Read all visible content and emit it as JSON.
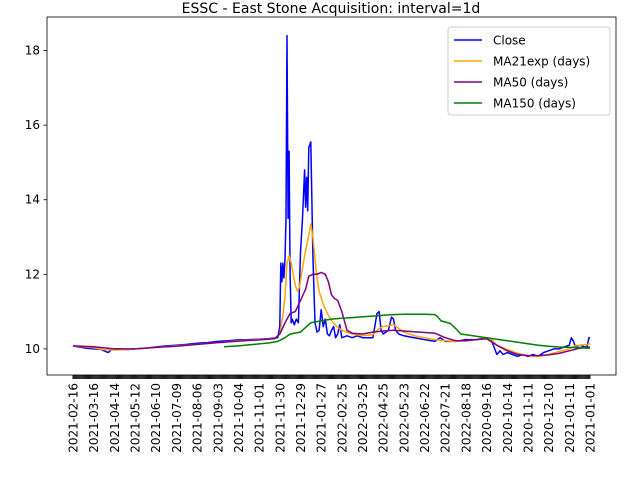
{
  "chart_data": {
    "type": "line",
    "title": "ESSC - East Stone Acquisition: interval=1d",
    "xlabel": "",
    "ylabel": "",
    "ylim": [
      9.3,
      18.9
    ],
    "yticks": [
      10,
      12,
      14,
      16,
      18
    ],
    "x_tick_labels": [
      "2021-02-16",
      "2021-03-16",
      "2021-04-14",
      "2021-05-12",
      "2021-06-10",
      "2021-07-09",
      "2021-08-06",
      "2021-09-03",
      "2021-10-04",
      "2021-11-01",
      "2021-11-30",
      "2021-12-29",
      "2021-01-27",
      "2022-02-25",
      "2022-03-25",
      "2022-04-25",
      "2022-05-23",
      "2022-06-22",
      "2022-07-21",
      "2022-08-18",
      "2020-09-16",
      "2020-10-14",
      "2020-11-11",
      "2020-12-10",
      "2021-01-11",
      "2021-01-01"
    ],
    "grid": false,
    "legend_position": "upper right",
    "x_index_range": [
      0,
      500
    ],
    "series": [
      {
        "name": "Close",
        "color": "#0000ff",
        "points": [
          [
            0,
            10.08
          ],
          [
            6,
            10.05
          ],
          [
            13,
            10.02
          ],
          [
            20,
            10.0
          ],
          [
            27,
            9.99
          ],
          [
            30,
            9.95
          ],
          [
            34,
            9.9
          ],
          [
            38,
            10.0
          ],
          [
            45,
            10.0
          ],
          [
            52,
            9.98
          ],
          [
            60,
            10.0
          ],
          [
            70,
            10.02
          ],
          [
            80,
            10.05
          ],
          [
            90,
            10.08
          ],
          [
            100,
            10.1
          ],
          [
            110,
            10.12
          ],
          [
            120,
            10.15
          ],
          [
            130,
            10.17
          ],
          [
            140,
            10.2
          ],
          [
            150,
            10.22
          ],
          [
            160,
            10.24
          ],
          [
            170,
            10.25
          ],
          [
            180,
            10.26
          ],
          [
            190,
            10.28
          ],
          [
            198,
            10.3
          ],
          [
            200,
            10.6
          ],
          [
            201,
            12.3
          ],
          [
            202,
            11.8
          ],
          [
            203,
            12.3
          ],
          [
            204,
            11.9
          ],
          [
            205,
            12.4
          ],
          [
            206,
            13.5
          ],
          [
            207,
            18.4
          ],
          [
            208,
            13.5
          ],
          [
            209,
            15.3
          ],
          [
            210,
            12.0
          ],
          [
            211,
            10.7
          ],
          [
            212,
            10.8
          ],
          [
            214,
            10.65
          ],
          [
            216,
            10.8
          ],
          [
            218,
            10.7
          ],
          [
            220,
            12.6
          ],
          [
            222,
            13.5
          ],
          [
            224,
            14.8
          ],
          [
            225,
            13.8
          ],
          [
            226,
            14.6
          ],
          [
            227,
            13.7
          ],
          [
            228,
            15.4
          ],
          [
            230,
            15.55
          ],
          [
            232,
            12.5
          ],
          [
            234,
            10.7
          ],
          [
            236,
            10.45
          ],
          [
            238,
            10.5
          ],
          [
            240,
            11.05
          ],
          [
            242,
            10.6
          ],
          [
            244,
            10.8
          ],
          [
            246,
            10.4
          ],
          [
            248,
            10.35
          ],
          [
            250,
            10.5
          ],
          [
            252,
            10.6
          ],
          [
            254,
            10.3
          ],
          [
            256,
            10.4
          ],
          [
            258,
            10.65
          ],
          [
            260,
            10.3
          ],
          [
            265,
            10.35
          ],
          [
            270,
            10.3
          ],
          [
            275,
            10.35
          ],
          [
            280,
            10.3
          ],
          [
            290,
            10.3
          ],
          [
            294,
            10.95
          ],
          [
            296,
            11.0
          ],
          [
            298,
            10.5
          ],
          [
            300,
            10.4
          ],
          [
            305,
            10.5
          ],
          [
            308,
            10.85
          ],
          [
            310,
            10.8
          ],
          [
            312,
            10.5
          ],
          [
            315,
            10.4
          ],
          [
            320,
            10.35
          ],
          [
            330,
            10.3
          ],
          [
            340,
            10.25
          ],
          [
            350,
            10.2
          ],
          [
            355,
            10.3
          ],
          [
            360,
            10.2
          ],
          [
            370,
            10.2
          ],
          [
            380,
            10.25
          ],
          [
            390,
            10.25
          ],
          [
            400,
            10.3
          ],
          [
            405,
            10.2
          ],
          [
            410,
            9.85
          ],
          [
            413,
            9.95
          ],
          [
            416,
            9.85
          ],
          [
            420,
            9.9
          ],
          [
            425,
            9.85
          ],
          [
            430,
            9.8
          ],
          [
            435,
            9.85
          ],
          [
            440,
            9.8
          ],
          [
            445,
            9.85
          ],
          [
            450,
            9.8
          ],
          [
            455,
            9.9
          ],
          [
            460,
            9.95
          ],
          [
            465,
            10.0
          ],
          [
            470,
            10.0
          ],
          [
            475,
            10.05
          ],
          [
            480,
            10.1
          ],
          [
            482,
            10.3
          ],
          [
            484,
            10.2
          ],
          [
            486,
            10.05
          ],
          [
            490,
            10.1
          ],
          [
            495,
            10.05
          ],
          [
            497,
            10.05
          ],
          [
            499,
            10.3
          ],
          [
            500,
            10.3
          ]
        ]
      },
      {
        "name": "MA21exp (days)",
        "color": "#ffa500",
        "points": [
          [
            0,
            10.08
          ],
          [
            10,
            10.06
          ],
          [
            20,
            10.03
          ],
          [
            30,
            9.98
          ],
          [
            40,
            9.97
          ],
          [
            50,
            9.98
          ],
          [
            60,
            10.0
          ],
          [
            80,
            10.04
          ],
          [
            100,
            10.08
          ],
          [
            120,
            10.12
          ],
          [
            140,
            10.17
          ],
          [
            160,
            10.22
          ],
          [
            180,
            10.25
          ],
          [
            195,
            10.28
          ],
          [
            200,
            10.4
          ],
          [
            203,
            10.9
          ],
          [
            205,
            11.4
          ],
          [
            207,
            12.3
          ],
          [
            209,
            12.5
          ],
          [
            211,
            12.3
          ],
          [
            213,
            12.0
          ],
          [
            215,
            11.7
          ],
          [
            217,
            11.55
          ],
          [
            219,
            11.65
          ],
          [
            221,
            12.0
          ],
          [
            224,
            12.5
          ],
          [
            227,
            12.9
          ],
          [
            230,
            13.35
          ],
          [
            232,
            13.0
          ],
          [
            234,
            12.4
          ],
          [
            236,
            11.9
          ],
          [
            238,
            11.55
          ],
          [
            242,
            11.2
          ],
          [
            246,
            10.95
          ],
          [
            250,
            10.75
          ],
          [
            255,
            10.6
          ],
          [
            260,
            10.5
          ],
          [
            270,
            10.4
          ],
          [
            280,
            10.35
          ],
          [
            290,
            10.38
          ],
          [
            296,
            10.55
          ],
          [
            300,
            10.6
          ],
          [
            305,
            10.62
          ],
          [
            310,
            10.65
          ],
          [
            315,
            10.55
          ],
          [
            320,
            10.45
          ],
          [
            330,
            10.35
          ],
          [
            340,
            10.3
          ],
          [
            350,
            10.25
          ],
          [
            360,
            10.22
          ],
          [
            370,
            10.2
          ],
          [
            380,
            10.22
          ],
          [
            390,
            10.25
          ],
          [
            400,
            10.28
          ],
          [
            405,
            10.25
          ],
          [
            410,
            10.1
          ],
          [
            420,
            9.98
          ],
          [
            430,
            9.88
          ],
          [
            440,
            9.82
          ],
          [
            450,
            9.8
          ],
          [
            460,
            9.85
          ],
          [
            470,
            9.93
          ],
          [
            480,
            10.0
          ],
          [
            485,
            10.08
          ],
          [
            490,
            10.1
          ],
          [
            500,
            10.13
          ]
        ]
      },
      {
        "name": "MA50 (days)",
        "color": "#800080",
        "points": [
          [
            0,
            10.08
          ],
          [
            20,
            10.06
          ],
          [
            40,
            10.0
          ],
          [
            60,
            10.0
          ],
          [
            80,
            10.04
          ],
          [
            100,
            10.07
          ],
          [
            120,
            10.12
          ],
          [
            140,
            10.17
          ],
          [
            160,
            10.21
          ],
          [
            180,
            10.24
          ],
          [
            195,
            10.27
          ],
          [
            200,
            10.4
          ],
          [
            205,
            10.7
          ],
          [
            210,
            10.95
          ],
          [
            215,
            11.0
          ],
          [
            220,
            11.3
          ],
          [
            225,
            11.6
          ],
          [
            228,
            11.95
          ],
          [
            232,
            12.0
          ],
          [
            236,
            12.0
          ],
          [
            240,
            12.05
          ],
          [
            244,
            12.0
          ],
          [
            247,
            11.8
          ],
          [
            250,
            11.45
          ],
          [
            253,
            11.35
          ],
          [
            256,
            11.3
          ],
          [
            260,
            11.0
          ],
          [
            265,
            10.5
          ],
          [
            270,
            10.42
          ],
          [
            280,
            10.4
          ],
          [
            290,
            10.45
          ],
          [
            300,
            10.48
          ],
          [
            310,
            10.5
          ],
          [
            320,
            10.48
          ],
          [
            330,
            10.46
          ],
          [
            340,
            10.44
          ],
          [
            350,
            10.42
          ],
          [
            360,
            10.3
          ],
          [
            370,
            10.22
          ],
          [
            380,
            10.22
          ],
          [
            390,
            10.25
          ],
          [
            400,
            10.27
          ],
          [
            410,
            10.1
          ],
          [
            420,
            9.95
          ],
          [
            430,
            9.85
          ],
          [
            440,
            9.82
          ],
          [
            450,
            9.82
          ],
          [
            460,
            9.84
          ],
          [
            470,
            9.88
          ],
          [
            480,
            9.95
          ],
          [
            490,
            10.02
          ],
          [
            500,
            10.05
          ]
        ]
      },
      {
        "name": "MA150 (days)",
        "color": "#008000",
        "points": [
          [
            146,
            10.06
          ],
          [
            160,
            10.08
          ],
          [
            175,
            10.12
          ],
          [
            190,
            10.16
          ],
          [
            198,
            10.2
          ],
          [
            205,
            10.3
          ],
          [
            210,
            10.4
          ],
          [
            220,
            10.45
          ],
          [
            230,
            10.7
          ],
          [
            240,
            10.75
          ],
          [
            250,
            10.8
          ],
          [
            260,
            10.82
          ],
          [
            270,
            10.84
          ],
          [
            280,
            10.86
          ],
          [
            290,
            10.88
          ],
          [
            300,
            10.9
          ],
          [
            310,
            10.92
          ],
          [
            320,
            10.93
          ],
          [
            330,
            10.93
          ],
          [
            340,
            10.93
          ],
          [
            350,
            10.92
          ],
          [
            353,
            10.85
          ],
          [
            356,
            10.75
          ],
          [
            360,
            10.72
          ],
          [
            365,
            10.68
          ],
          [
            370,
            10.55
          ],
          [
            375,
            10.4
          ],
          [
            380,
            10.38
          ],
          [
            390,
            10.34
          ],
          [
            400,
            10.3
          ],
          [
            410,
            10.26
          ],
          [
            420,
            10.22
          ],
          [
            430,
            10.18
          ],
          [
            440,
            10.14
          ],
          [
            450,
            10.1
          ],
          [
            460,
            10.07
          ],
          [
            470,
            10.05
          ],
          [
            480,
            10.04
          ],
          [
            490,
            10.03
          ],
          [
            500,
            10.02
          ]
        ]
      }
    ]
  }
}
